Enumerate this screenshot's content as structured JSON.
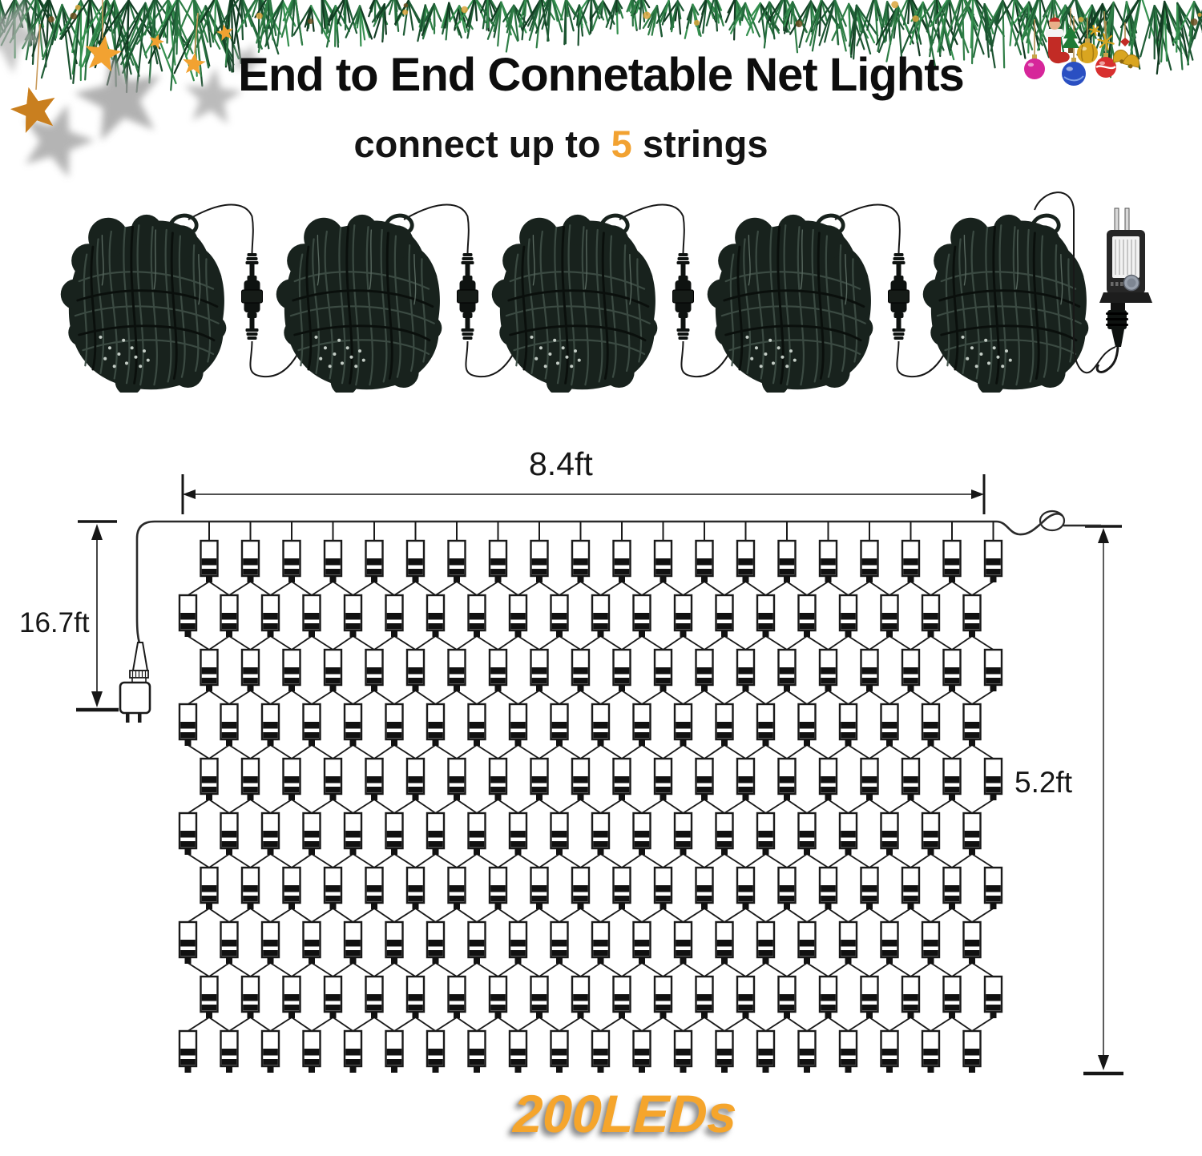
{
  "header": {
    "title": "End to End Connetable Net Lights",
    "subtitle_prefix": "connect up to ",
    "subtitle_highlight": "5",
    "subtitle_suffix": " strings"
  },
  "product": {
    "strings": 5,
    "leds_label": "200LEDs"
  },
  "diagram": {
    "width_label": "8.4ft",
    "lead_label": "16.7ft",
    "height_label": "5.2ft",
    "rows": 10,
    "cols": 20,
    "leds_total": 200
  },
  "colors": {
    "accent_orange": "#F2A231",
    "bundle_green": "#18221D",
    "line_art": "#1a1a1a"
  }
}
